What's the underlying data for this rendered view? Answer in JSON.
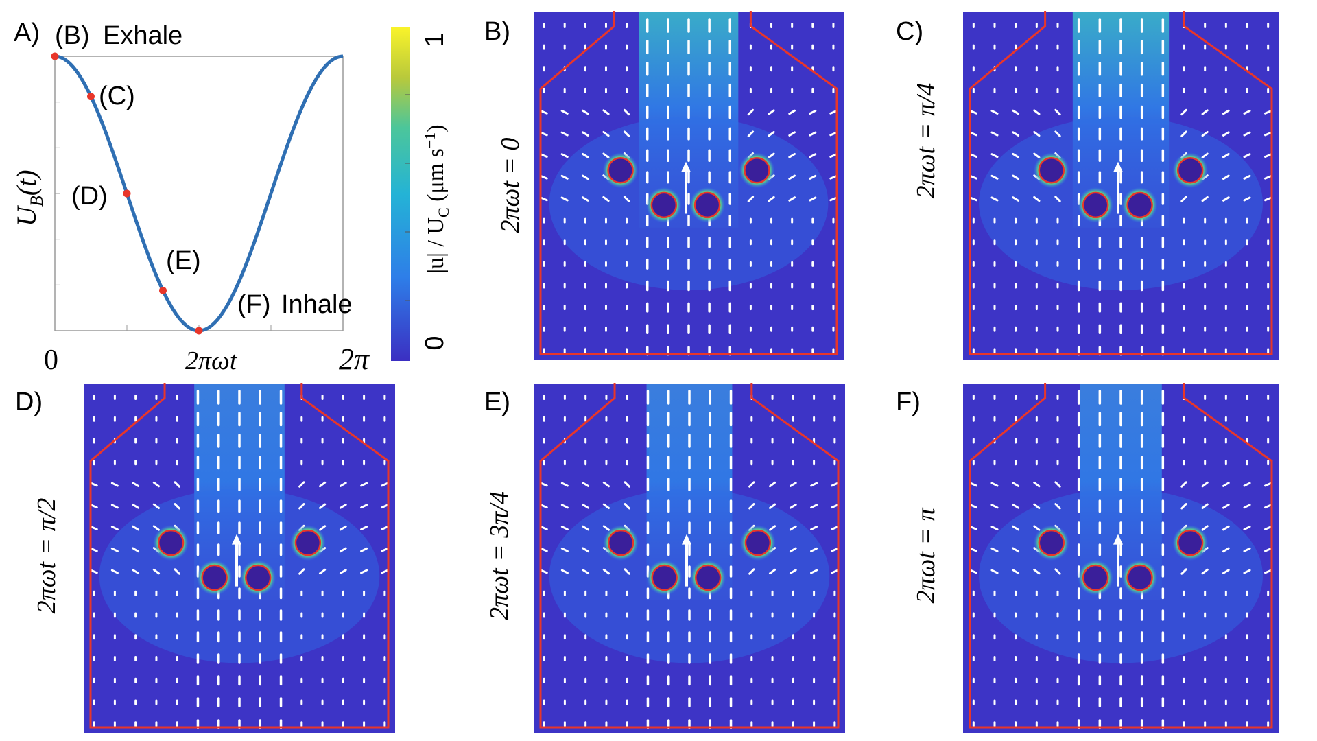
{
  "figure": {
    "panel_a": {
      "label": "A)",
      "ylabel": "U_B(t)",
      "ylabel_main": "U",
      "ylabel_sub": "B",
      "ylabel_arg": "(t)",
      "xtick_left": "0",
      "xtick_mid": "2πωt",
      "xtick_right": "2π",
      "annotations": [
        "(B)",
        "Exhale",
        "(C)",
        "(D)",
        "(E)",
        "(F)",
        "Inhale"
      ]
    },
    "colorbar": {
      "top_label": "1",
      "bottom_label": "0",
      "title": "|u| / U_C (μm s⁻¹)",
      "title_main": "|u| / U",
      "title_sub": "C",
      "title_units": " (μm s",
      "title_exp": "−1",
      "title_close": ")"
    },
    "panels": [
      {
        "id": "B",
        "label": "B)",
        "phase": "2πωt = 0",
        "phase_lhs": "2πωt = ",
        "phase_value": "0",
        "numer": "",
        "denom": ""
      },
      {
        "id": "C",
        "label": "C)",
        "phase": "2πωt = π/4",
        "phase_lhs": "2πωt = ",
        "phase_value": "",
        "numer": "π",
        "denom": "4"
      },
      {
        "id": "D",
        "label": "D)",
        "phase": "2πωt = π/2",
        "phase_lhs": "2πωt = ",
        "phase_value": "",
        "numer": "π",
        "denom": "2"
      },
      {
        "id": "E",
        "label": "E)",
        "phase": "2πωt = 3π/4",
        "phase_lhs": "2πωt = ",
        "phase_value": "",
        "numer": "3π",
        "denom": "4"
      },
      {
        "id": "F",
        "label": "F)",
        "phase": "2πωt = π",
        "phase_lhs": "2πωt = ",
        "phase_value": "π",
        "numer": "",
        "denom": ""
      }
    ],
    "colors": {
      "curve": "#2f6fb3",
      "marker": "#e8362a",
      "boundary": "#e8362a",
      "field_low": "#3a2fc4",
      "field_high": "#3cc6b8",
      "arrow": "#ffffff"
    }
  },
  "chart_data": {
    "type": "line",
    "title": "",
    "xlabel": "2πωt",
    "ylabel": "U_B(t)",
    "xlim": [
      0,
      6.2832
    ],
    "ylim": [
      -1,
      1
    ],
    "x": [
      0,
      0.3927,
      0.7854,
      1.1781,
      1.5708,
      1.9635,
      2.3562,
      2.7489,
      3.1416,
      3.5343,
      3.927,
      4.3197,
      4.7124,
      5.1051,
      5.4978,
      5.8905,
      6.2832
    ],
    "series": [
      {
        "name": "U_B(t)",
        "values": [
          1.0,
          0.924,
          0.707,
          0.383,
          0.0,
          -0.383,
          -0.707,
          -0.924,
          -1.0,
          -0.924,
          -0.707,
          -0.383,
          0.0,
          0.383,
          0.707,
          0.924,
          1.0
        ]
      }
    ],
    "markers": [
      {
        "label": "(B)",
        "x": 0,
        "y": 1.0
      },
      {
        "label": "(C)",
        "x": 0.7854,
        "y": 0.707
      },
      {
        "label": "(D)",
        "x": 1.5708,
        "y": 0.0
      },
      {
        "label": "(E)",
        "x": 2.3562,
        "y": -0.707
      },
      {
        "label": "(F)",
        "x": 3.1416,
        "y": -1.0
      }
    ]
  }
}
